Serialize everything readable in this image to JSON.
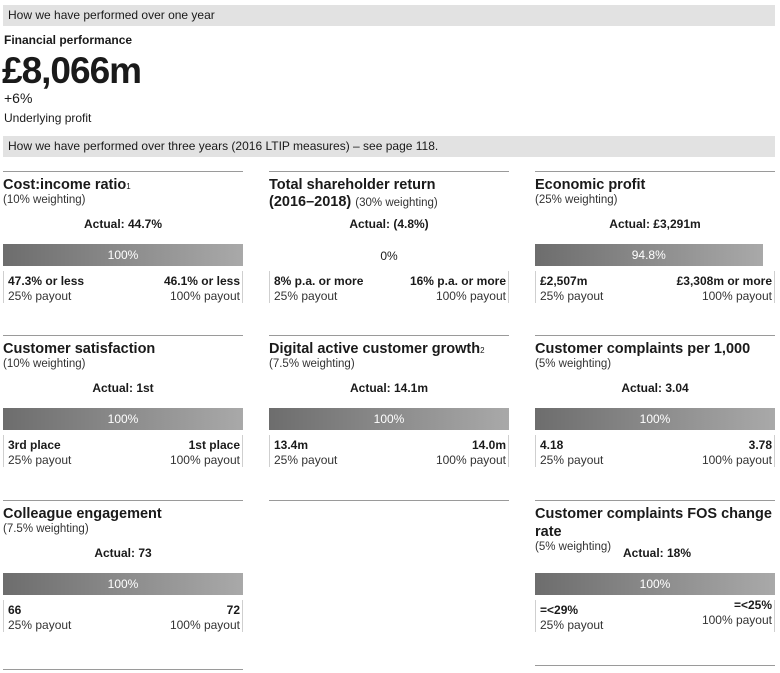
{
  "header1": "How we have performed over one year",
  "financial": {
    "title": "Financial performance",
    "value": "£8,066m",
    "change": "+6%",
    "label": "Underlying profit"
  },
  "header2": "How we have performed over three years (2016 LTIP measures) – see page 118.",
  "panels": {
    "cost_income": {
      "title": "Cost:income ratio",
      "sup": "1",
      "weighting": "(10% weighting)",
      "actual": "Actual: 44.7%",
      "bar_label": "100%",
      "bar_fill": 1.0,
      "low_value": "47.3% or less",
      "low_payout": "25% payout",
      "high_value": "46.1% or less",
      "high_payout": "100% payout"
    },
    "tsr": {
      "title_line1": "Total shareholder return",
      "title_line2": "(2016–2018)",
      "weighting": "(30% weighting)",
      "actual": "Actual: (4.8%)",
      "bar_label": "0%",
      "bar_fill": 0.0,
      "low_value": "8% p.a. or more",
      "low_payout": "25% payout",
      "high_value": "16% p.a. or more",
      "high_payout": "100% payout"
    },
    "economic_profit": {
      "title": "Economic profit",
      "weighting": "(25% weighting)",
      "actual": "Actual: £3,291m",
      "bar_label": "94.8%",
      "bar_fill": 0.948,
      "low_value": "£2,507m",
      "low_payout": "25% payout",
      "high_value": "£3,308m or more",
      "high_payout": "100% payout"
    },
    "customer_satisfaction": {
      "title": "Customer satisfaction",
      "weighting": "(10% weighting)",
      "actual": "Actual: 1st",
      "bar_label": "100%",
      "bar_fill": 1.0,
      "low_value": "3rd place",
      "low_payout": "25% payout",
      "high_value": "1st place",
      "high_payout": "100% payout"
    },
    "digital_growth": {
      "title": "Digital active customer growth",
      "sup": "2",
      "weighting": "(7.5% weighting)",
      "actual": "Actual: 14.1m",
      "bar_label": "100%",
      "bar_fill": 1.0,
      "low_value": "13.4m",
      "low_payout": "25% payout",
      "high_value": "14.0m",
      "high_payout": "100% payout"
    },
    "complaints_per_1000": {
      "title": "Customer complaints per 1,000",
      "weighting": "(5% weighting)",
      "actual": "Actual: 3.04",
      "bar_label": "100%",
      "bar_fill": 1.0,
      "low_value": "4.18",
      "low_payout": "25% payout",
      "high_value": "3.78",
      "high_payout": "100% payout"
    },
    "colleague_engagement": {
      "title": "Colleague engagement",
      "weighting": "(7.5% weighting)",
      "actual": "Actual: 73",
      "bar_label": "100%",
      "bar_fill": 1.0,
      "low_value": "66",
      "low_payout": "25% payout",
      "high_value": "72",
      "high_payout": "100% payout"
    },
    "fos_change_rate": {
      "title_line1": "Customer complaints FOS change",
      "title_line2": "rate",
      "weighting": "(5% weighting)",
      "actual": "Actual: 18%",
      "bar_label": "100%",
      "bar_fill": 1.0,
      "low_value": "=<29%",
      "low_payout": "25% payout",
      "high_value": "=<25%",
      "high_payout": "100% payout"
    }
  }
}
